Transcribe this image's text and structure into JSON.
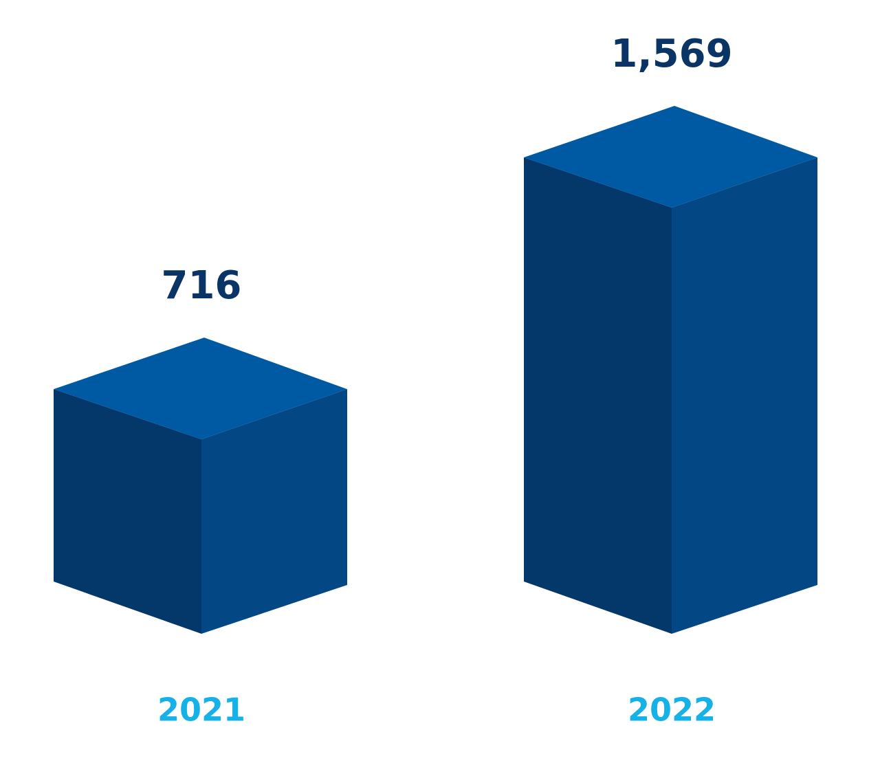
{
  "chart_data": {
    "type": "bar3d",
    "categories": [
      "2021",
      "2022"
    ],
    "values": [
      716,
      1569
    ],
    "value_labels": [
      "716",
      "1,569"
    ],
    "face_colors": {
      "left": "#04376a",
      "right": "#034784",
      "top": "#0059a3"
    },
    "value_label_color": "#0a3466",
    "category_label_color": "#16b1e6"
  }
}
